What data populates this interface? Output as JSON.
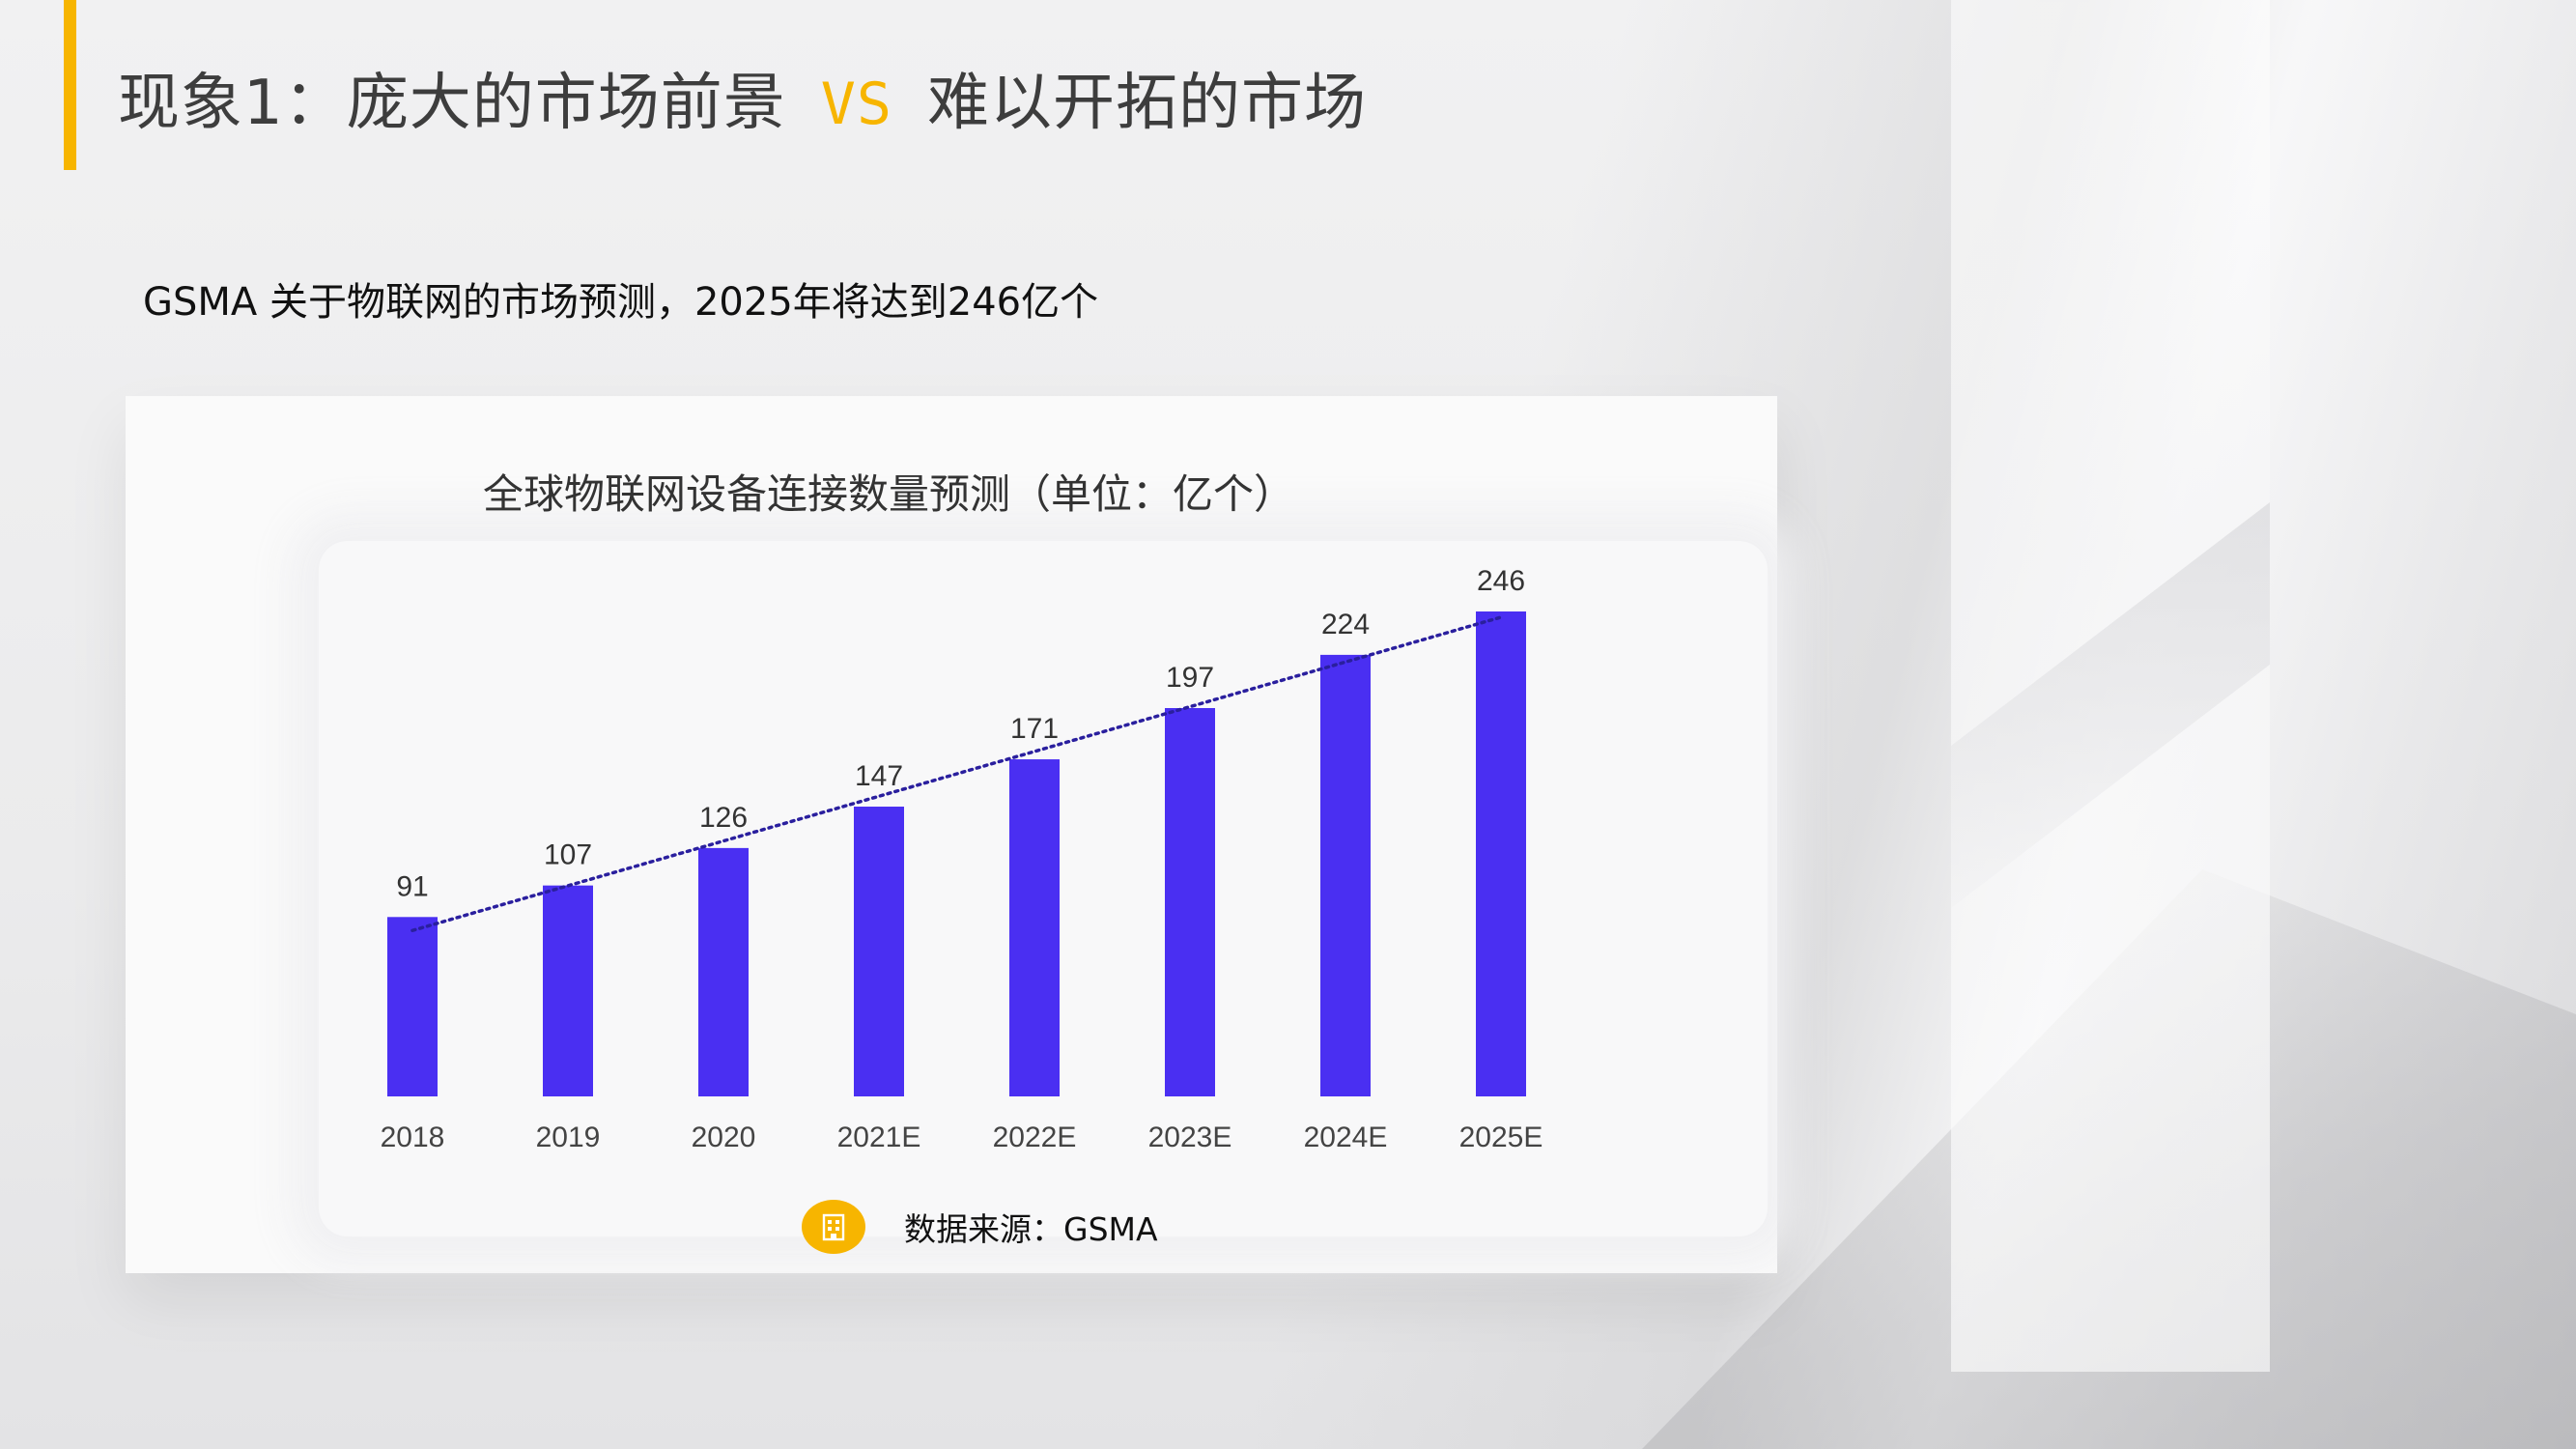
{
  "slide": {
    "title_part1": "现象1：庞大的市场前景",
    "title_vs": "VS",
    "title_part2": "难以开拓的市场",
    "subtitle": "GSMA 关于物联网的市场预测，2025年将达到246亿个",
    "source_label": "数据来源：GSMA"
  },
  "colors": {
    "accent": "#f7b500",
    "bar": "#4a2ff2",
    "trendline": "#2a1f9e"
  },
  "icons": {
    "source_icon": "building-icon"
  },
  "chart_data": {
    "type": "bar",
    "title": "全球物联网设备连接数量预测（单位：亿个）",
    "categories": [
      "2018",
      "2019",
      "2020",
      "2021E",
      "2022E",
      "2023E",
      "2024E",
      "2025E"
    ],
    "values": [
      91,
      107,
      126,
      147,
      171,
      197,
      224,
      246
    ],
    "trendline": "linear",
    "ylim": [
      0,
      246
    ],
    "grid": false,
    "legend": "none",
    "data_labels": true
  }
}
